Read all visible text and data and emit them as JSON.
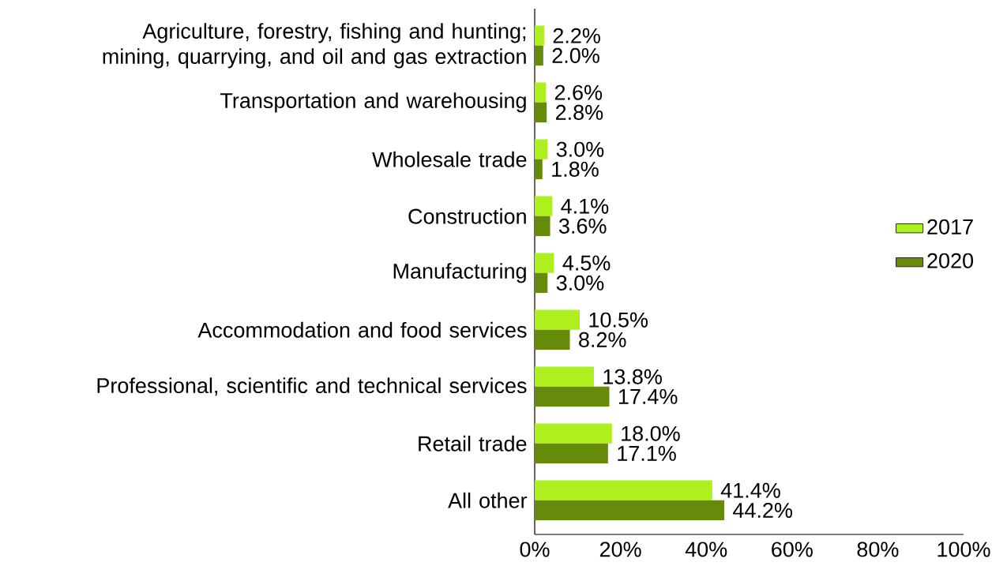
{
  "chart_data": {
    "type": "bar",
    "orientation": "horizontal",
    "categories": [
      "Agriculture, forestry, fishing and hunting; mining, quarrying, and oil and gas extraction",
      "Transportation and warehousing",
      "Wholesale trade",
      "Construction",
      "Manufacturing",
      "Accommodation and food services",
      "Professional, scientific and technical services",
      "Retail trade",
      "All other"
    ],
    "series": [
      {
        "name": "2017",
        "color": "#aef01e",
        "values": [
          2.2,
          2.6,
          3.0,
          4.1,
          4.5,
          10.5,
          13.8,
          18.0,
          41.4
        ],
        "value_labels": [
          "2.2%",
          "2.6%",
          "3.0%",
          "4.1%",
          "4.5%",
          "10.5%",
          "13.8%",
          "18.0%",
          "41.4%"
        ]
      },
      {
        "name": "2020",
        "color": "#668a0a",
        "values": [
          2.0,
          2.8,
          1.8,
          3.6,
          3.0,
          8.2,
          17.4,
          17.1,
          44.2
        ],
        "value_labels": [
          "2.0%",
          "2.8%",
          "1.8%",
          "3.6%",
          "3.0%",
          "8.2%",
          "17.4%",
          "17.1%",
          "44.2%"
        ]
      }
    ],
    "xlim": [
      0,
      100
    ],
    "xticks": [
      {
        "value": 0,
        "label": "0%"
      },
      {
        "value": 20,
        "label": "20%"
      },
      {
        "value": 40,
        "label": "40%"
      },
      {
        "value": 60,
        "label": "60%"
      },
      {
        "value": 80,
        "label": "80%"
      },
      {
        "value": 100,
        "label": "100%"
      }
    ],
    "legend": "right"
  }
}
